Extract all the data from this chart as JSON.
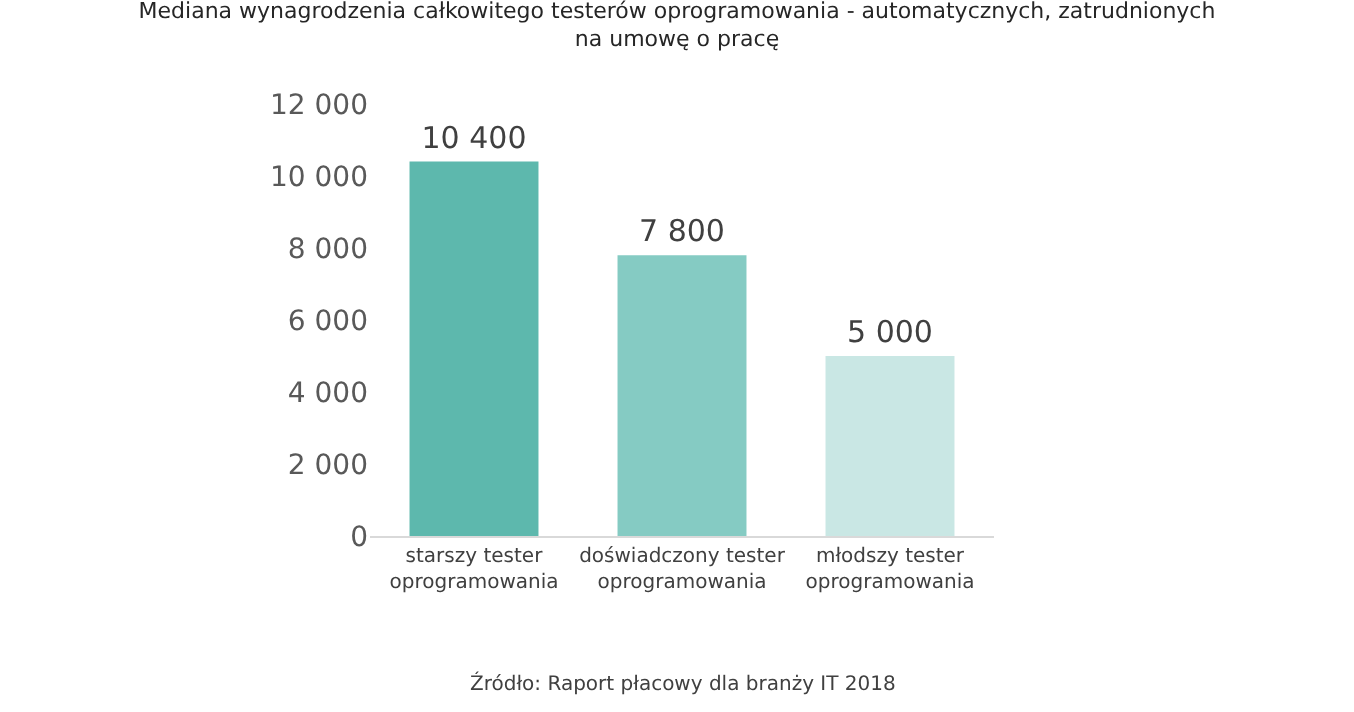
{
  "chart_data": {
    "type": "bar",
    "title": "Mediana wynagrodzenia całkowitego testerów oprogramowania - automatycznych, zatrudnionych na umowę o pracę",
    "categories": [
      "starszy tester oprogramowania",
      "doświadczony tester oprogramowania",
      "młodszy tester oprogramowania"
    ],
    "values": [
      10400,
      7800,
      5000
    ],
    "colors": [
      "#5db8ad",
      "#85cbc3",
      "#c9e7e4"
    ],
    "value_labels": [
      "10 400",
      "7 800",
      "5 000"
    ],
    "ylim": [
      0,
      12000
    ],
    "yticks": [
      {
        "value": 0,
        "label": "0"
      },
      {
        "value": 2000,
        "label": "2 000"
      },
      {
        "value": 4000,
        "label": "4 000"
      },
      {
        "value": 6000,
        "label": "6 000"
      },
      {
        "value": 8000,
        "label": "8 000"
      },
      {
        "value": 10000,
        "label": "10 000"
      },
      {
        "value": 12000,
        "label": "12 000"
      }
    ],
    "grid": false,
    "annotations": [
      "Źródło: Raport płacowy dla branży IT 2018"
    ]
  }
}
